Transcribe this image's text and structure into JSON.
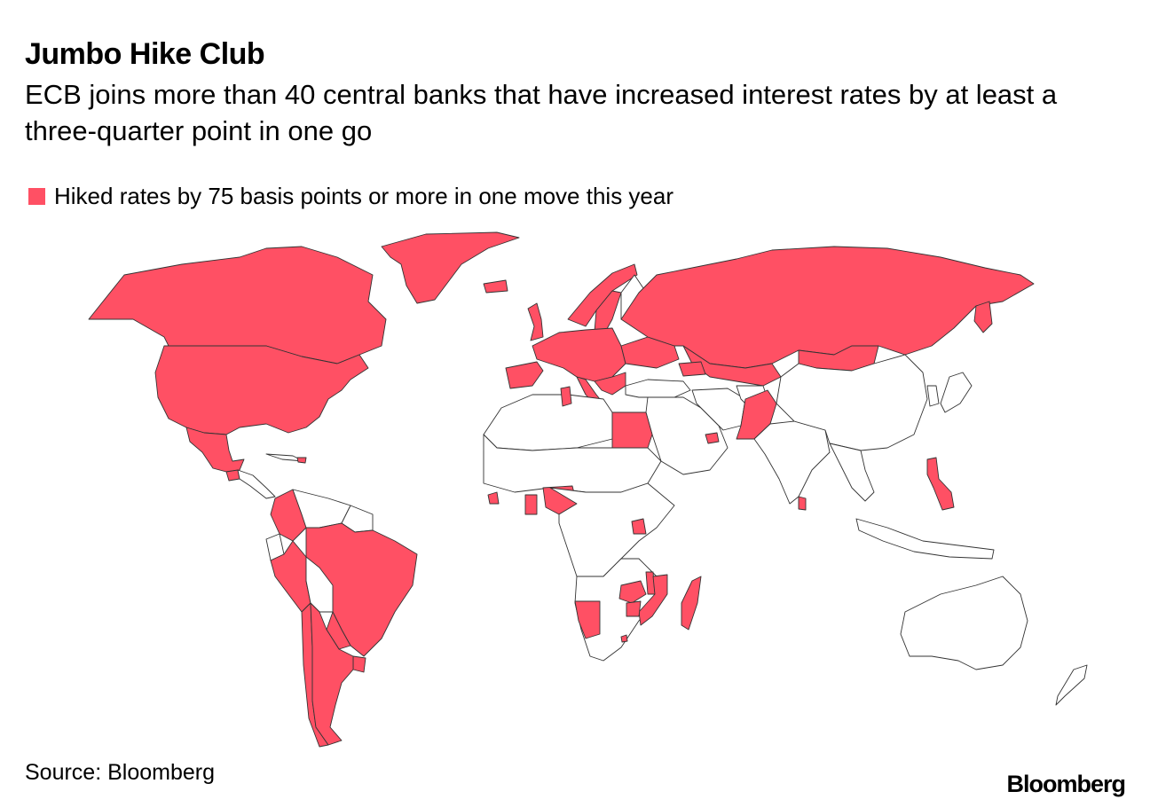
{
  "title": "Jumbo Hike Club",
  "subtitle": "ECB joins more than 40 central banks that have increased interest rates by at least a three-quarter point in one go",
  "legend": {
    "label": "Hiked rates by 75 basis points or more in one move this year",
    "color": "#ff5064"
  },
  "map": {
    "highlight_color": "#ff5064",
    "other_color": "#ffffff",
    "border_color": "#333333",
    "countries": [
      {
        "name": "Canada",
        "highlighted": true
      },
      {
        "name": "United States",
        "highlighted": true
      },
      {
        "name": "Mexico",
        "highlighted": true
      },
      {
        "name": "Guatemala",
        "highlighted": true
      },
      {
        "name": "Jamaica",
        "highlighted": true
      },
      {
        "name": "Colombia",
        "highlighted": true
      },
      {
        "name": "Brazil",
        "highlighted": true
      },
      {
        "name": "Peru",
        "highlighted": true
      },
      {
        "name": "Chile",
        "highlighted": true
      },
      {
        "name": "Argentina",
        "highlighted": true
      },
      {
        "name": "Paraguay",
        "highlighted": true
      },
      {
        "name": "Uruguay",
        "highlighted": true
      },
      {
        "name": "Trinidad and Tobago",
        "highlighted": true
      },
      {
        "name": "Greenland",
        "highlighted": true
      },
      {
        "name": "Iceland",
        "highlighted": true
      },
      {
        "name": "Norway",
        "highlighted": true
      },
      {
        "name": "Sweden",
        "highlighted": true
      },
      {
        "name": "Denmark",
        "highlighted": true
      },
      {
        "name": "United Kingdom",
        "highlighted": true
      },
      {
        "name": "Euro Area",
        "highlighted": true
      },
      {
        "name": "Poland",
        "highlighted": true
      },
      {
        "name": "Czech Republic",
        "highlighted": true
      },
      {
        "name": "Hungary",
        "highlighted": true
      },
      {
        "name": "Romania",
        "highlighted": true
      },
      {
        "name": "Serbia",
        "highlighted": true
      },
      {
        "name": "Albania",
        "highlighted": true
      },
      {
        "name": "North Macedonia",
        "highlighted": true
      },
      {
        "name": "Moldova",
        "highlighted": true
      },
      {
        "name": "Ukraine",
        "highlighted": true
      },
      {
        "name": "Belarus",
        "highlighted": true
      },
      {
        "name": "Russia",
        "highlighted": true
      },
      {
        "name": "Georgia",
        "highlighted": true
      },
      {
        "name": "Armenia",
        "highlighted": true
      },
      {
        "name": "Azerbaijan",
        "highlighted": true
      },
      {
        "name": "Kazakhstan",
        "highlighted": true
      },
      {
        "name": "Kyrgyzstan",
        "highlighted": true
      },
      {
        "name": "Tajikistan",
        "highlighted": true
      },
      {
        "name": "Mongolia",
        "highlighted": true
      },
      {
        "name": "Pakistan",
        "highlighted": true
      },
      {
        "name": "Sri Lanka",
        "highlighted": true
      },
      {
        "name": "Philippines",
        "highlighted": true
      },
      {
        "name": "Tunisia",
        "highlighted": true
      },
      {
        "name": "Egypt",
        "highlighted": true
      },
      {
        "name": "United Arab Emirates",
        "highlighted": true
      },
      {
        "name": "Ghana",
        "highlighted": true
      },
      {
        "name": "Nigeria",
        "highlighted": true
      },
      {
        "name": "Sierra Leone",
        "highlighted": true
      },
      {
        "name": "Uganda",
        "highlighted": true
      },
      {
        "name": "Zambia",
        "highlighted": true
      },
      {
        "name": "Malawi",
        "highlighted": true
      },
      {
        "name": "Mozambique",
        "highlighted": true
      },
      {
        "name": "Zimbabwe",
        "highlighted": true
      },
      {
        "name": "Namibia",
        "highlighted": true
      },
      {
        "name": "Madagascar",
        "highlighted": true
      },
      {
        "name": "Lesotho",
        "highlighted": true
      }
    ]
  },
  "source": "Source: Bloomberg",
  "brand": "Bloomberg"
}
